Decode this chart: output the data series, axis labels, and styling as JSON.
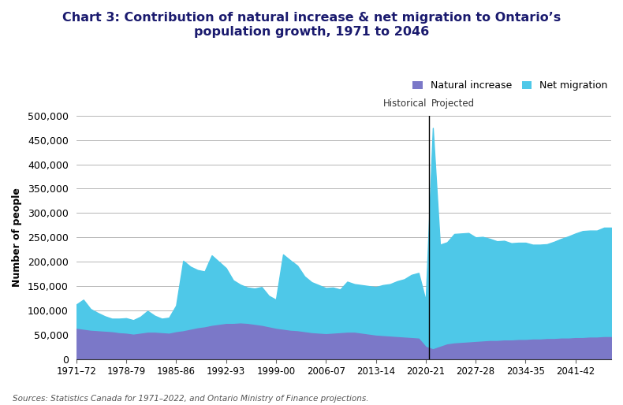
{
  "title": "Chart 3: Contribution of natural increase & net migration to Ontario’s\npopulation growth, 1971 to 2046",
  "ylabel": "Number of people",
  "source": "Sources: Statistics Canada for 1971–2022, and Ontario Ministry of Finance projections.",
  "natural_increase_color": "#7B78C8",
  "net_migration_color": "#4EC8E8",
  "divider_x": 2020.5,
  "ylim": [
    0,
    500000
  ],
  "yticks": [
    0,
    50000,
    100000,
    150000,
    200000,
    250000,
    300000,
    350000,
    400000,
    450000,
    500000
  ],
  "xtick_labels": [
    "1971–72",
    "1978-79",
    "1985-86",
    "1992-93",
    "1999-00",
    "2006-07",
    "2013-14",
    "2020-21",
    "2027-28",
    "2034-35",
    "2041-42"
  ],
  "xtick_positions": [
    1971,
    1978,
    1985,
    1992,
    1999,
    2006,
    2013,
    2020,
    2027,
    2034,
    2041
  ],
  "years": [
    1971,
    1972,
    1973,
    1974,
    1975,
    1976,
    1977,
    1978,
    1979,
    1980,
    1981,
    1982,
    1983,
    1984,
    1985,
    1986,
    1987,
    1988,
    1989,
    1990,
    1991,
    1992,
    1993,
    1994,
    1995,
    1996,
    1997,
    1998,
    1999,
    2000,
    2001,
    2002,
    2003,
    2004,
    2005,
    2006,
    2007,
    2008,
    2009,
    2010,
    2011,
    2012,
    2013,
    2014,
    2015,
    2016,
    2017,
    2018,
    2019,
    2020,
    2021,
    2022,
    2023,
    2024,
    2025,
    2026,
    2027,
    2028,
    2029,
    2030,
    2031,
    2032,
    2033,
    2034,
    2035,
    2036,
    2037,
    2038,
    2039,
    2040,
    2041,
    2042,
    2043,
    2044,
    2045,
    2046
  ],
  "natural_increase": [
    62000,
    60000,
    58000,
    57000,
    56000,
    55000,
    53000,
    52000,
    50000,
    52000,
    54000,
    54000,
    53000,
    52000,
    55000,
    57000,
    60000,
    63000,
    65000,
    68000,
    70000,
    72000,
    72000,
    73000,
    72000,
    70000,
    68000,
    65000,
    62000,
    60000,
    58000,
    57000,
    55000,
    53000,
    52000,
    51000,
    52000,
    53000,
    54000,
    54000,
    52000,
    50000,
    48000,
    47000,
    46000,
    45000,
    44000,
    43000,
    42000,
    25000,
    20000,
    25000,
    30000,
    32000,
    33000,
    34000,
    35000,
    36000,
    37000,
    37000,
    38000,
    38000,
    39000,
    39000,
    40000,
    40000,
    41000,
    41000,
    42000,
    42000,
    43000,
    43000,
    44000,
    44000,
    45000,
    45000
  ],
  "net_migration": [
    50000,
    62000,
    45000,
    38000,
    32000,
    28000,
    30000,
    32000,
    30000,
    35000,
    45000,
    35000,
    30000,
    33000,
    55000,
    145000,
    130000,
    120000,
    115000,
    145000,
    130000,
    115000,
    90000,
    80000,
    75000,
    75000,
    80000,
    65000,
    60000,
    155000,
    145000,
    135000,
    115000,
    105000,
    100000,
    95000,
    95000,
    90000,
    105000,
    100000,
    100000,
    100000,
    100000,
    105000,
    108000,
    115000,
    120000,
    130000,
    135000,
    95000,
    455000,
    210000,
    210000,
    225000,
    225000,
    225000,
    215000,
    215000,
    210000,
    205000,
    205000,
    200000,
    200000,
    200000,
    195000,
    195000,
    195000,
    200000,
    205000,
    210000,
    215000,
    220000,
    220000,
    220000,
    225000,
    225000
  ]
}
